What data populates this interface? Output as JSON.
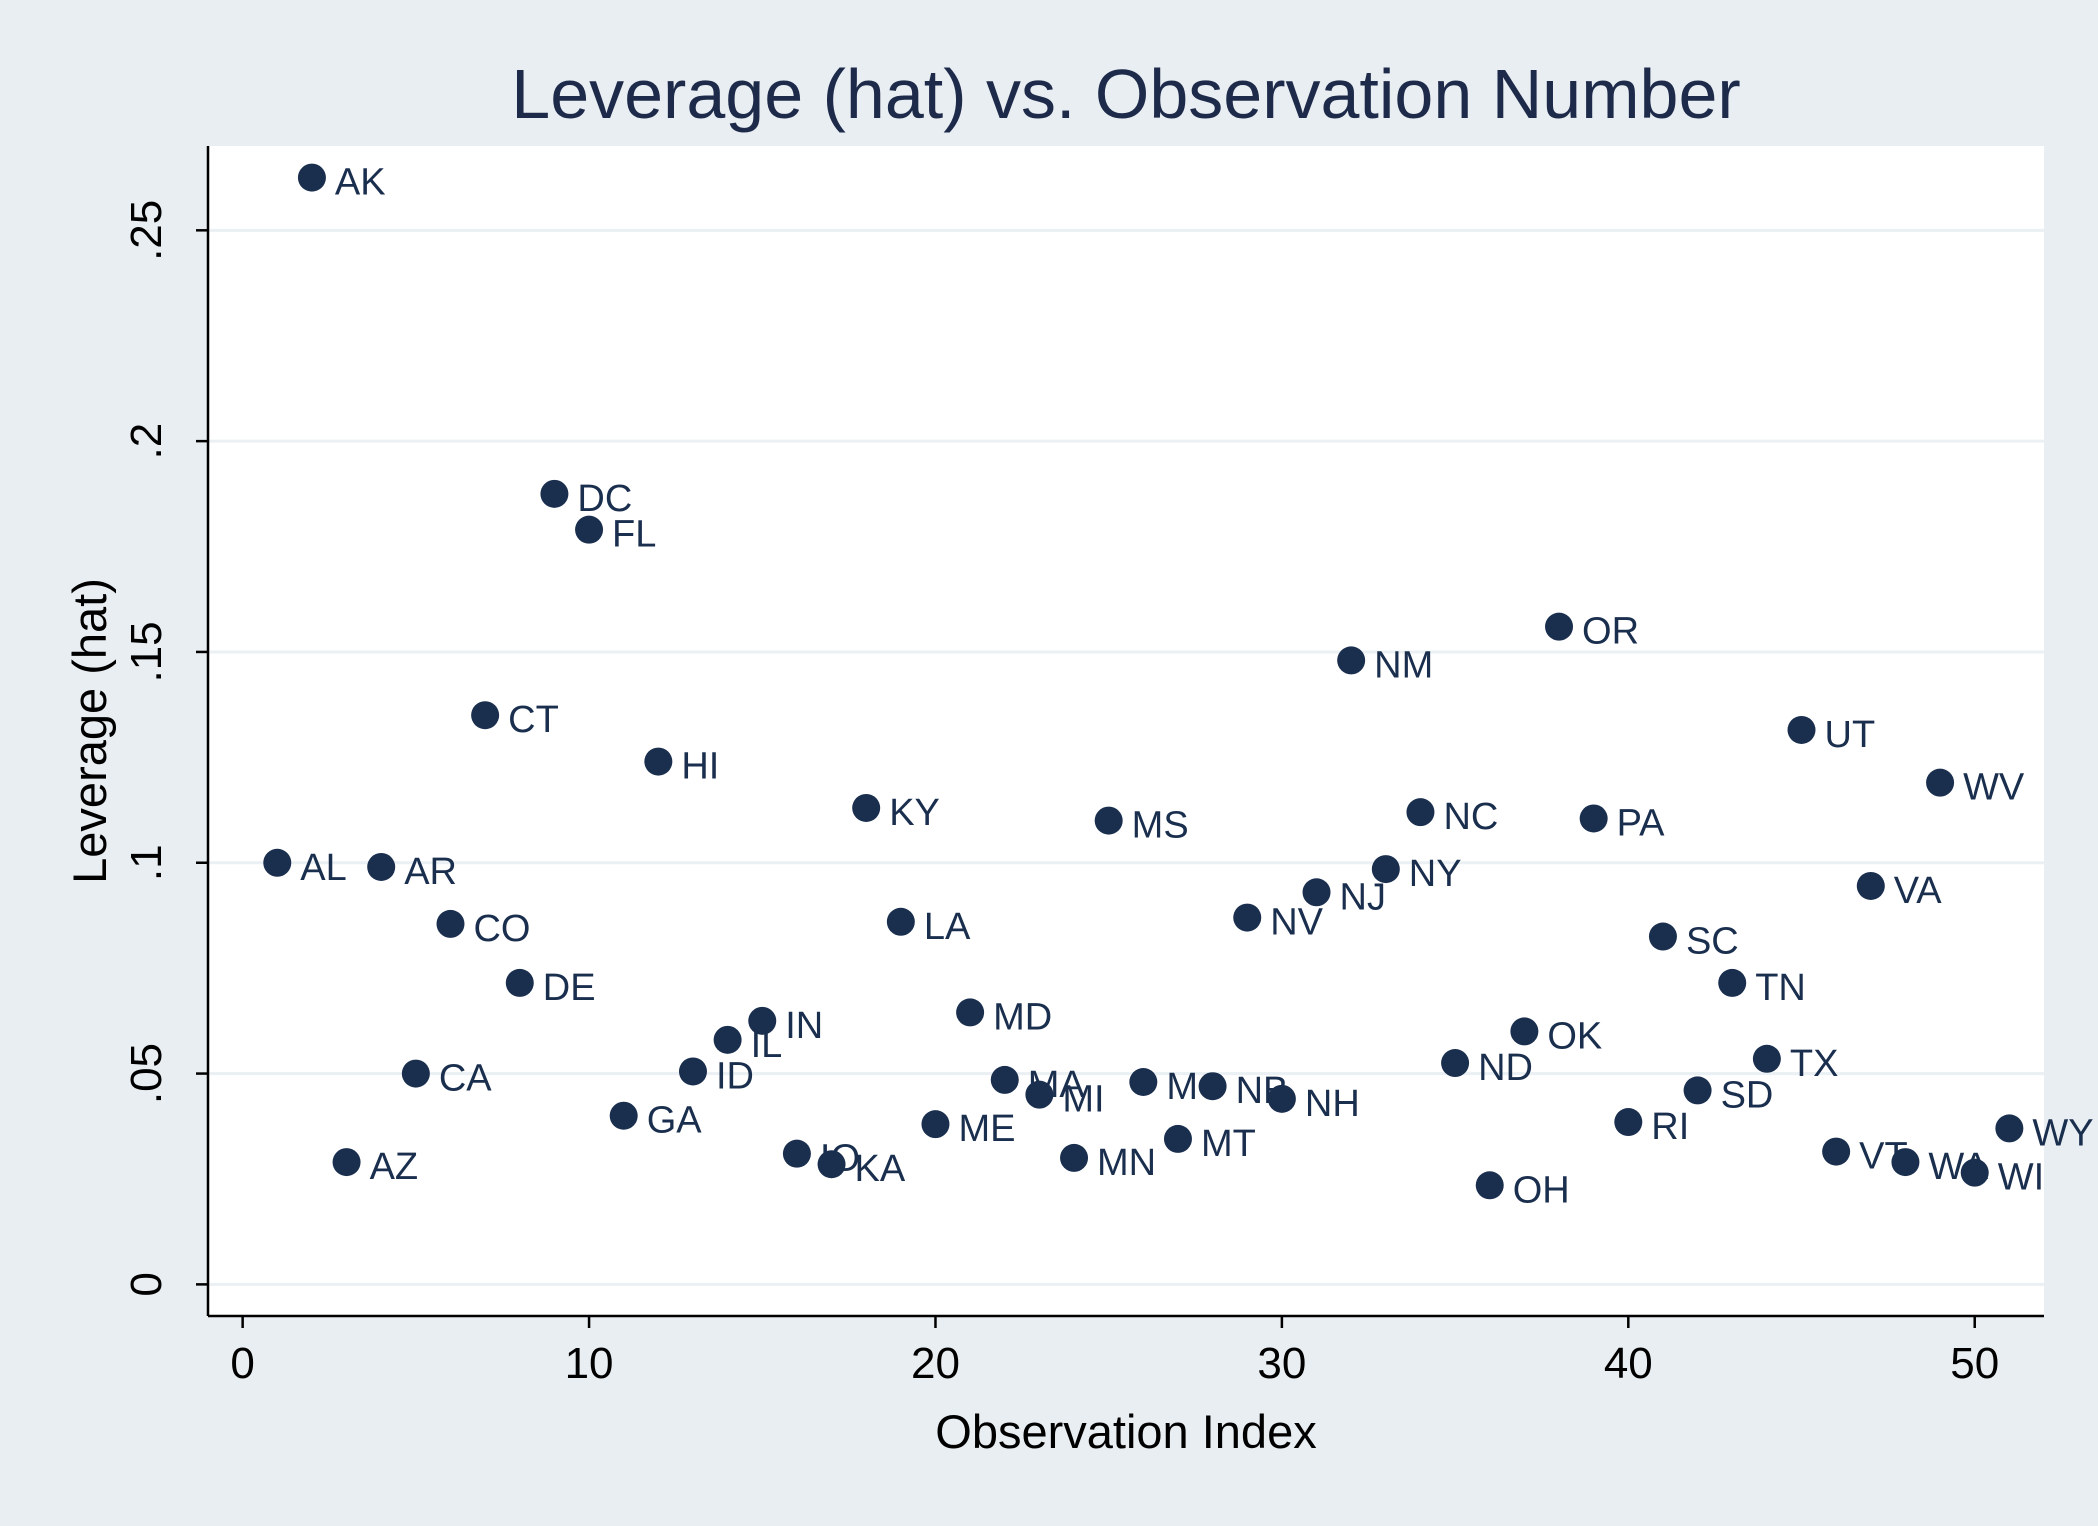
{
  "colors": {
    "outer_background": "#e9eef2",
    "plot_background": "#ffffff",
    "gridline": "#eaf0f3",
    "marker": "#1a2e4e",
    "title": "#1d2a4a"
  },
  "chart_data": {
    "type": "scatter",
    "title": "Leverage (hat) vs. Observation Number",
    "xlabel": "Observation Index",
    "ylabel": "Leverage (hat)",
    "xlim": [
      -1,
      52
    ],
    "ylim": [
      -0.0075,
      0.27
    ],
    "x_ticks": [
      0,
      10,
      20,
      30,
      40,
      50
    ],
    "x_tick_labels": [
      "0",
      "10",
      "20",
      "30",
      "40",
      "50"
    ],
    "y_ticks": [
      0,
      0.05,
      0.1,
      0.15,
      0.2,
      0.25
    ],
    "y_tick_labels": [
      "0",
      ".05",
      ".1",
      ".15",
      ".2",
      ".25"
    ],
    "grid": "horizontal",
    "legend": "none",
    "points": [
      {
        "label": "AL",
        "x": 1,
        "y": 0.1
      },
      {
        "label": "AK",
        "x": 2,
        "y": 0.2625
      },
      {
        "label": "AZ",
        "x": 3,
        "y": 0.029
      },
      {
        "label": "AR",
        "x": 4,
        "y": 0.099
      },
      {
        "label": "CA",
        "x": 5,
        "y": 0.05
      },
      {
        "label": "CO",
        "x": 6,
        "y": 0.0855
      },
      {
        "label": "CT",
        "x": 7,
        "y": 0.135
      },
      {
        "label": "DE",
        "x": 8,
        "y": 0.0715
      },
      {
        "label": "DC",
        "x": 9,
        "y": 0.1875
      },
      {
        "label": "FL",
        "x": 10,
        "y": 0.179
      },
      {
        "label": "GA",
        "x": 11,
        "y": 0.04
      },
      {
        "label": "HI",
        "x": 12,
        "y": 0.124
      },
      {
        "label": "ID",
        "x": 13,
        "y": 0.0505
      },
      {
        "label": "IL",
        "x": 14,
        "y": 0.058
      },
      {
        "label": "IN",
        "x": 15,
        "y": 0.0625
      },
      {
        "label": "IO",
        "x": 16,
        "y": 0.031
      },
      {
        "label": "KA",
        "x": 17,
        "y": 0.0285
      },
      {
        "label": "KY",
        "x": 18,
        "y": 0.113
      },
      {
        "label": "LA",
        "x": 19,
        "y": 0.086
      },
      {
        "label": "ME",
        "x": 20,
        "y": 0.038
      },
      {
        "label": "MD",
        "x": 21,
        "y": 0.0645
      },
      {
        "label": "MA",
        "x": 22,
        "y": 0.0485
      },
      {
        "label": "MI",
        "x": 23,
        "y": 0.045
      },
      {
        "label": "MN",
        "x": 24,
        "y": 0.03
      },
      {
        "label": "MS",
        "x": 25,
        "y": 0.11
      },
      {
        "label": "MO",
        "x": 26,
        "y": 0.048
      },
      {
        "label": "MT",
        "x": 27,
        "y": 0.0345
      },
      {
        "label": "NB",
        "x": 28,
        "y": 0.047
      },
      {
        "label": "NV",
        "x": 29,
        "y": 0.087
      },
      {
        "label": "NH",
        "x": 30,
        "y": 0.044
      },
      {
        "label": "NJ",
        "x": 31,
        "y": 0.093
      },
      {
        "label": "NM",
        "x": 32,
        "y": 0.148
      },
      {
        "label": "NY",
        "x": 33,
        "y": 0.0985
      },
      {
        "label": "NC",
        "x": 34,
        "y": 0.112
      },
      {
        "label": "ND",
        "x": 35,
        "y": 0.0525
      },
      {
        "label": "OH",
        "x": 36,
        "y": 0.0235
      },
      {
        "label": "OK",
        "x": 37,
        "y": 0.06
      },
      {
        "label": "OR",
        "x": 38,
        "y": 0.156
      },
      {
        "label": "PA",
        "x": 39,
        "y": 0.1105
      },
      {
        "label": "RI",
        "x": 40,
        "y": 0.0385
      },
      {
        "label": "SC",
        "x": 41,
        "y": 0.0825
      },
      {
        "label": "SD",
        "x": 42,
        "y": 0.046
      },
      {
        "label": "TN",
        "x": 43,
        "y": 0.0715
      },
      {
        "label": "TX",
        "x": 44,
        "y": 0.0535
      },
      {
        "label": "UT",
        "x": 45,
        "y": 0.1315
      },
      {
        "label": "VT",
        "x": 46,
        "y": 0.0315
      },
      {
        "label": "VA",
        "x": 47,
        "y": 0.0945
      },
      {
        "label": "WA",
        "x": 48,
        "y": 0.029
      },
      {
        "label": "WV",
        "x": 49,
        "y": 0.119
      },
      {
        "label": "WI",
        "x": 50,
        "y": 0.0265
      },
      {
        "label": "WY",
        "x": 51,
        "y": 0.037
      }
    ]
  }
}
